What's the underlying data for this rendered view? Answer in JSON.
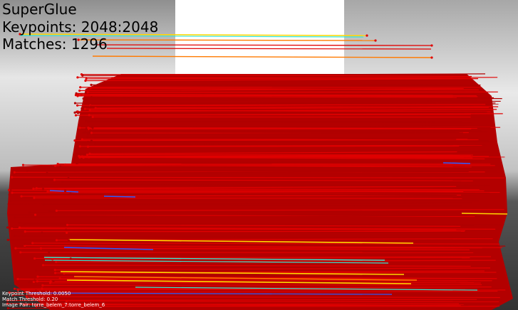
{
  "overlay": {
    "title": "SuperGlue",
    "keypoints": "Keypoints: 2048:2048",
    "matches": "Matches: 1296",
    "keypoint_threshold": "Keypoint Threshold: 0.0050",
    "match_threshold": "Match Threshold: 0.20",
    "image_pair": "Image Pair: torre_belem_7:torre_belem_6"
  },
  "colors": {
    "match_red": "#b00000",
    "match_bright_red": "#e00000",
    "sky_light": "#d9d9d9",
    "water_dark": "#3a3a3a",
    "yellow": "#ffd700",
    "orange": "#ff7a00",
    "cyan": "#37e6d1",
    "blue": "#2b5cff"
  }
}
